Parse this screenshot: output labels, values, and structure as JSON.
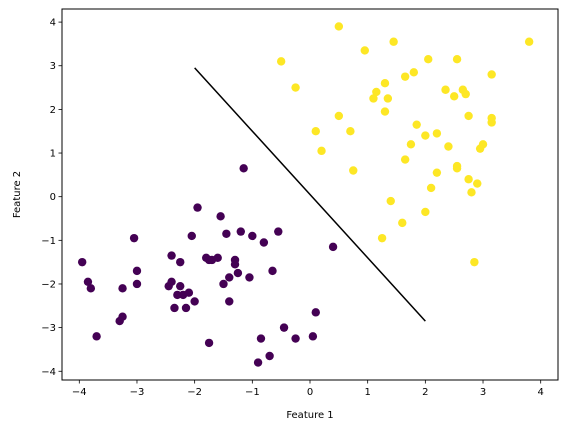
{
  "chart_data": {
    "type": "scatter",
    "title": "",
    "xlabel": "Feature 1",
    "ylabel": "Feature 2",
    "xlim": [
      -4.3,
      4.3
    ],
    "ylim": [
      -4.2,
      4.3
    ],
    "xticks": [
      -4,
      -3,
      -2,
      -1,
      0,
      1,
      2,
      3,
      4
    ],
    "yticks": [
      -4,
      -3,
      -2,
      -1,
      0,
      1,
      2,
      3,
      4
    ],
    "grid": false,
    "legend": "none",
    "series": [
      {
        "color": "#440154",
        "points": [
          [
            -3.95,
            -1.5
          ],
          [
            -3.85,
            -1.95
          ],
          [
            -3.8,
            -2.1
          ],
          [
            -3.7,
            -3.2
          ],
          [
            -3.3,
            -2.85
          ],
          [
            -3.25,
            -2.75
          ],
          [
            -3.25,
            -2.1
          ],
          [
            -3.05,
            -0.95
          ],
          [
            -3.0,
            -1.7
          ],
          [
            -3.0,
            -2.0
          ],
          [
            -2.45,
            -2.05
          ],
          [
            -2.4,
            -1.35
          ],
          [
            -2.4,
            -1.95
          ],
          [
            -2.35,
            -2.55
          ],
          [
            -2.3,
            -2.25
          ],
          [
            -2.25,
            -1.5
          ],
          [
            -2.25,
            -2.05
          ],
          [
            -2.2,
            -2.25
          ],
          [
            -2.15,
            -2.55
          ],
          [
            -2.1,
            -2.2
          ],
          [
            -2.05,
            -0.9
          ],
          [
            -2.0,
            -2.4
          ],
          [
            -1.95,
            -0.25
          ],
          [
            -1.8,
            -1.4
          ],
          [
            -1.75,
            -1.45
          ],
          [
            -1.75,
            -3.35
          ],
          [
            -1.7,
            -1.45
          ],
          [
            -1.6,
            -1.4
          ],
          [
            -1.55,
            -0.45
          ],
          [
            -1.5,
            -2.0
          ],
          [
            -1.45,
            -0.85
          ],
          [
            -1.4,
            -1.85
          ],
          [
            -1.4,
            -2.4
          ],
          [
            -1.3,
            -1.45
          ],
          [
            -1.3,
            -1.55
          ],
          [
            -1.25,
            -1.75
          ],
          [
            -1.2,
            -0.8
          ],
          [
            -1.15,
            0.65
          ],
          [
            -1.05,
            -1.85
          ],
          [
            -1.0,
            -0.9
          ],
          [
            -0.9,
            -3.8
          ],
          [
            -0.85,
            -3.25
          ],
          [
            -0.8,
            -1.05
          ],
          [
            -0.7,
            -3.65
          ],
          [
            -0.65,
            -1.7
          ],
          [
            -0.55,
            -0.8
          ],
          [
            -0.45,
            -3.0
          ],
          [
            -0.25,
            -3.25
          ],
          [
            0.05,
            -3.2
          ],
          [
            0.1,
            -2.65
          ],
          [
            0.4,
            -1.15
          ]
        ]
      },
      {
        "color": "#fde725",
        "points": [
          [
            -0.5,
            3.1
          ],
          [
            -0.25,
            2.5
          ],
          [
            0.1,
            1.5
          ],
          [
            0.2,
            1.05
          ],
          [
            0.5,
            3.9
          ],
          [
            0.5,
            1.85
          ],
          [
            0.7,
            1.5
          ],
          [
            0.75,
            0.6
          ],
          [
            0.95,
            3.35
          ],
          [
            1.1,
            2.25
          ],
          [
            1.15,
            2.4
          ],
          [
            1.25,
            -0.95
          ],
          [
            1.3,
            1.95
          ],
          [
            1.3,
            2.6
          ],
          [
            1.35,
            2.25
          ],
          [
            1.4,
            -0.1
          ],
          [
            1.45,
            3.55
          ],
          [
            1.6,
            -0.6
          ],
          [
            1.65,
            0.85
          ],
          [
            1.65,
            2.75
          ],
          [
            1.75,
            1.2
          ],
          [
            1.8,
            2.85
          ],
          [
            1.85,
            1.65
          ],
          [
            2.0,
            1.4
          ],
          [
            2.0,
            -0.35
          ],
          [
            2.05,
            3.15
          ],
          [
            2.1,
            0.2
          ],
          [
            2.2,
            1.45
          ],
          [
            2.2,
            0.55
          ],
          [
            2.35,
            2.45
          ],
          [
            2.4,
            1.15
          ],
          [
            2.5,
            2.3
          ],
          [
            2.55,
            0.7
          ],
          [
            2.55,
            0.65
          ],
          [
            2.55,
            3.15
          ],
          [
            2.65,
            2.45
          ],
          [
            2.7,
            2.35
          ],
          [
            2.75,
            1.85
          ],
          [
            2.75,
            0.4
          ],
          [
            2.8,
            0.1
          ],
          [
            2.85,
            -1.5
          ],
          [
            2.9,
            0.3
          ],
          [
            2.95,
            1.1
          ],
          [
            3.0,
            1.2
          ],
          [
            3.15,
            2.8
          ],
          [
            3.15,
            1.8
          ],
          [
            3.15,
            1.7
          ],
          [
            3.8,
            3.55
          ]
        ]
      }
    ],
    "lines": [
      {
        "color": "#000000",
        "points": [
          [
            -2.0,
            2.95
          ],
          [
            2.0,
            -2.85
          ]
        ]
      }
    ]
  }
}
